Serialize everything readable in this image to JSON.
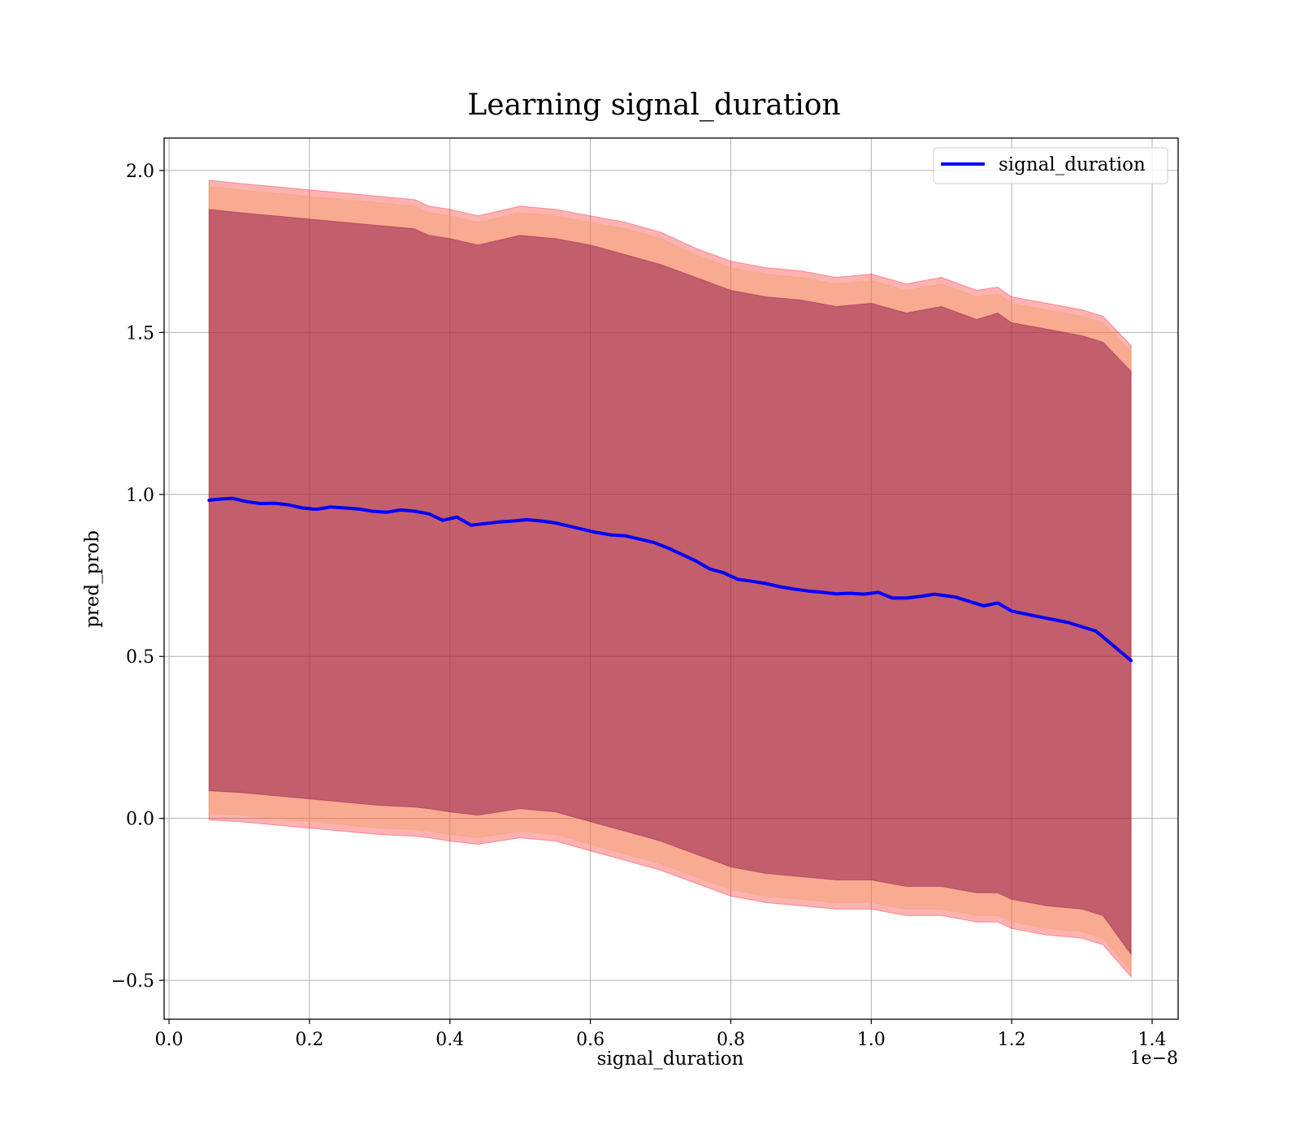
{
  "chart_data": {
    "type": "line",
    "title": "Learning signal_duration",
    "xlabel": "signal_duration",
    "ylabel": "pred_prob",
    "x_offset_label": "1e−8",
    "xlim": [
      -0.007,
      1.437
    ],
    "ylim": [
      -0.62,
      2.1
    ],
    "x_ticks": [
      0.0,
      0.2,
      0.4,
      0.6,
      0.8,
      1.0,
      1.2,
      1.4
    ],
    "x_tick_labels": [
      "0.0",
      "0.2",
      "0.4",
      "0.6",
      "0.8",
      "1.0",
      "1.2",
      "1.4"
    ],
    "y_ticks": [
      -0.5,
      0.0,
      0.5,
      1.0,
      1.5,
      2.0
    ],
    "y_tick_labels": [
      "−0.5",
      "0.0",
      "0.5",
      "1.0",
      "1.5",
      "2.0"
    ],
    "grid": true,
    "legend_position": "top-right",
    "series": [
      {
        "name": "signal_duration",
        "color": "#0000ff",
        "x": [
          0.057,
          0.07,
          0.09,
          0.11,
          0.13,
          0.15,
          0.17,
          0.19,
          0.21,
          0.23,
          0.25,
          0.27,
          0.29,
          0.31,
          0.33,
          0.35,
          0.37,
          0.39,
          0.41,
          0.43,
          0.45,
          0.47,
          0.49,
          0.51,
          0.53,
          0.55,
          0.57,
          0.59,
          0.61,
          0.63,
          0.65,
          0.67,
          0.69,
          0.71,
          0.73,
          0.75,
          0.77,
          0.79,
          0.81,
          0.83,
          0.85,
          0.87,
          0.89,
          0.91,
          0.93,
          0.95,
          0.97,
          0.99,
          1.01,
          1.03,
          1.05,
          1.07,
          1.09,
          1.12,
          1.16,
          1.18,
          1.2,
          1.24,
          1.28,
          1.32,
          1.37
        ],
        "y": [
          0.982,
          0.985,
          0.988,
          0.978,
          0.972,
          0.973,
          0.968,
          0.958,
          0.954,
          0.961,
          0.958,
          0.955,
          0.948,
          0.945,
          0.952,
          0.948,
          0.94,
          0.92,
          0.93,
          0.905,
          0.91,
          0.915,
          0.918,
          0.922,
          0.918,
          0.912,
          0.902,
          0.892,
          0.882,
          0.875,
          0.872,
          0.862,
          0.852,
          0.835,
          0.815,
          0.795,
          0.77,
          0.758,
          0.738,
          0.732,
          0.725,
          0.715,
          0.708,
          0.702,
          0.698,
          0.693,
          0.695,
          0.692,
          0.698,
          0.68,
          0.68,
          0.685,
          0.692,
          0.683,
          0.656,
          0.665,
          0.64,
          0.622,
          0.605,
          0.578,
          0.487
        ]
      }
    ],
    "bands": [
      {
        "kind": "mean ± 1.96·std (red band)",
        "color": "#ff0000",
        "x": [
          0.057,
          0.1,
          0.15,
          0.2,
          0.25,
          0.3,
          0.35,
          0.37,
          0.4,
          0.44,
          0.5,
          0.55,
          0.6,
          0.65,
          0.7,
          0.75,
          0.8,
          0.85,
          0.9,
          0.95,
          1.0,
          1.05,
          1.1,
          1.15,
          1.18,
          1.2,
          1.25,
          1.3,
          1.33,
          1.37
        ],
        "upper": [
          1.97,
          1.96,
          1.95,
          1.94,
          1.93,
          1.92,
          1.91,
          1.89,
          1.88,
          1.86,
          1.89,
          1.88,
          1.86,
          1.84,
          1.81,
          1.76,
          1.72,
          1.7,
          1.69,
          1.67,
          1.68,
          1.65,
          1.67,
          1.63,
          1.64,
          1.61,
          1.59,
          1.57,
          1.55,
          1.46
        ],
        "lower": [
          -0.005,
          -0.01,
          -0.02,
          -0.03,
          -0.04,
          -0.05,
          -0.055,
          -0.06,
          -0.07,
          -0.08,
          -0.06,
          -0.07,
          -0.1,
          -0.13,
          -0.16,
          -0.2,
          -0.24,
          -0.26,
          -0.27,
          -0.28,
          -0.28,
          -0.3,
          -0.3,
          -0.32,
          -0.32,
          -0.34,
          -0.36,
          -0.37,
          -0.39,
          -0.49
        ]
      },
      {
        "kind": "mean ± 1.645·std (orange band)",
        "color": "#f0a060",
        "x": [
          0.057,
          0.1,
          0.15,
          0.2,
          0.25,
          0.3,
          0.35,
          0.37,
          0.4,
          0.44,
          0.5,
          0.55,
          0.6,
          0.65,
          0.7,
          0.75,
          0.8,
          0.85,
          0.9,
          0.95,
          1.0,
          1.05,
          1.1,
          1.15,
          1.18,
          1.2,
          1.25,
          1.3,
          1.33,
          1.37
        ],
        "upper": [
          1.95,
          1.94,
          1.93,
          1.92,
          1.91,
          1.9,
          1.89,
          1.87,
          1.86,
          1.84,
          1.87,
          1.86,
          1.84,
          1.82,
          1.79,
          1.74,
          1.7,
          1.68,
          1.67,
          1.65,
          1.66,
          1.63,
          1.65,
          1.61,
          1.62,
          1.59,
          1.57,
          1.55,
          1.53,
          1.44
        ],
        "lower": [
          0.015,
          0.01,
          0.0,
          -0.01,
          -0.02,
          -0.03,
          -0.035,
          -0.04,
          -0.05,
          -0.06,
          -0.04,
          -0.05,
          -0.08,
          -0.11,
          -0.14,
          -0.18,
          -0.22,
          -0.24,
          -0.25,
          -0.26,
          -0.26,
          -0.28,
          -0.28,
          -0.3,
          -0.3,
          -0.32,
          -0.34,
          -0.35,
          -0.37,
          -0.47
        ]
      },
      {
        "kind": "mean ± std (purple band)",
        "color": "#800040",
        "x": [
          0.057,
          0.1,
          0.15,
          0.2,
          0.25,
          0.3,
          0.35,
          0.37,
          0.4,
          0.44,
          0.5,
          0.55,
          0.6,
          0.65,
          0.7,
          0.75,
          0.8,
          0.85,
          0.9,
          0.95,
          1.0,
          1.05,
          1.1,
          1.15,
          1.18,
          1.2,
          1.25,
          1.3,
          1.33,
          1.37
        ],
        "upper": [
          1.88,
          1.87,
          1.86,
          1.85,
          1.84,
          1.83,
          1.82,
          1.8,
          1.79,
          1.77,
          1.8,
          1.79,
          1.77,
          1.74,
          1.71,
          1.67,
          1.63,
          1.61,
          1.6,
          1.58,
          1.59,
          1.56,
          1.58,
          1.54,
          1.56,
          1.53,
          1.51,
          1.49,
          1.47,
          1.38
        ],
        "lower": [
          0.085,
          0.08,
          0.07,
          0.06,
          0.05,
          0.04,
          0.035,
          0.03,
          0.02,
          0.01,
          0.03,
          0.02,
          -0.01,
          -0.04,
          -0.07,
          -0.11,
          -0.15,
          -0.17,
          -0.18,
          -0.19,
          -0.19,
          -0.21,
          -0.21,
          -0.23,
          -0.23,
          -0.25,
          -0.27,
          -0.28,
          -0.3,
          -0.42
        ]
      }
    ]
  }
}
